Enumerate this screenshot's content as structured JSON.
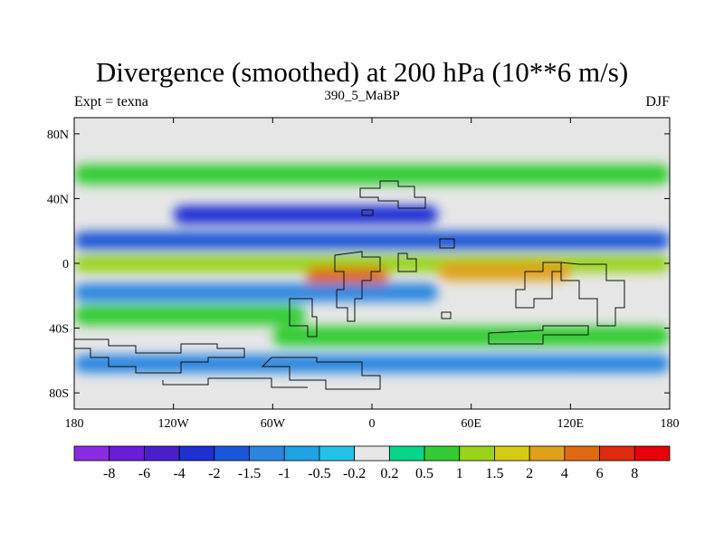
{
  "chart_data": {
    "type": "heatmap",
    "title": "Divergence (smoothed) at 200 hPa (10**6 m/s)",
    "subtitle_left": "Expt = texna",
    "subtitle_center": "390_5_MaBP",
    "subtitle_right": "DJF",
    "x_ticks": [
      "180",
      "120W",
      "60W",
      "0",
      "60E",
      "120E",
      "180"
    ],
    "y_ticks": [
      "80N",
      "40N",
      "0",
      "40S",
      "80S"
    ],
    "xlim": [
      -180,
      180
    ],
    "ylim": [
      -90,
      90
    ],
    "colorbar_levels": [
      "-8",
      "-6",
      "-4",
      "-2",
      "-1.5",
      "-1",
      "-0.5",
      "-0.2",
      "0.2",
      "0.5",
      "1",
      "1.5",
      "2",
      "4",
      "6",
      "8"
    ],
    "colorbar_colors": [
      "#8a2be2",
      "#6a1cd8",
      "#4a20cc",
      "#1e2fd4",
      "#1a56d8",
      "#2a85e0",
      "#1fa2e6",
      "#22c2e8",
      "#e6e6e6",
      "#06d68a",
      "#33cc33",
      "#99d41a",
      "#d4cc14",
      "#e0a01a",
      "#e06a14",
      "#e02a10",
      "#e8000a"
    ],
    "bands": [
      {
        "lat": 55,
        "lon_start": -180,
        "lon_end": 180,
        "value": 0.7
      },
      {
        "lat": 30,
        "lon_start": -120,
        "lon_end": 40,
        "value": -3.0
      },
      {
        "lat": 14,
        "lon_start": -180,
        "lon_end": 180,
        "value": -1.8
      },
      {
        "lat": 0,
        "lon_start": -180,
        "lon_end": 180,
        "value": 1.5
      },
      {
        "lat": -5,
        "lon_start": 40,
        "lon_end": 120,
        "value": 3.0
      },
      {
        "lat": -8,
        "lon_start": -40,
        "lon_end": 10,
        "value": 5.0
      },
      {
        "lat": -18,
        "lon_start": -180,
        "lon_end": 40,
        "value": -1.2
      },
      {
        "lat": -32,
        "lon_start": -180,
        "lon_end": -40,
        "value": 0.8
      },
      {
        "lat": -45,
        "lon_start": -60,
        "lon_end": 180,
        "value": 0.8
      },
      {
        "lat": -62,
        "lon_start": -180,
        "lon_end": 180,
        "value": -1.3
      }
    ]
  }
}
